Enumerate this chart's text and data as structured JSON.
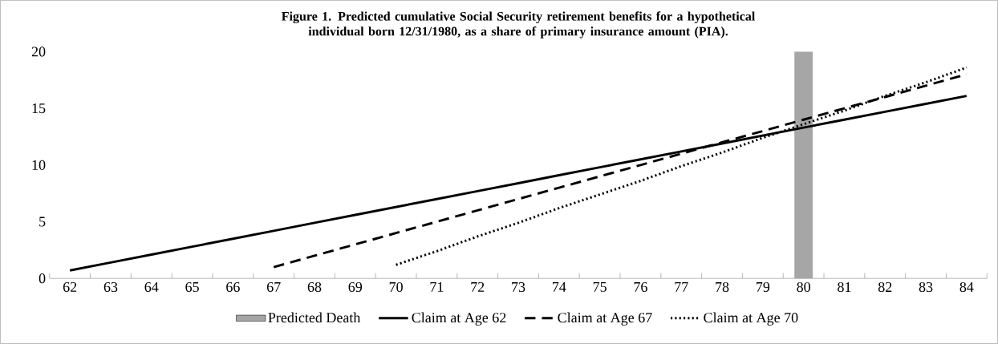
{
  "chart_data": {
    "type": "line",
    "title": "Figure 1. Predicted cumulative Social Security retirement benefits for a hypothetical individual born 12/31/1980, as a share of primary insurance amount (PIA).",
    "categories": [
      "62",
      "63",
      "64",
      "65",
      "66",
      "67",
      "68",
      "69",
      "70",
      "71",
      "72",
      "73",
      "74",
      "75",
      "76",
      "77",
      "78",
      "79",
      "80",
      "81",
      "82",
      "83",
      "84"
    ],
    "series": [
      {
        "name": "Predicted Death",
        "type": "bar",
        "color": "#a6a6a6",
        "values": [
          null,
          null,
          null,
          null,
          null,
          null,
          null,
          null,
          null,
          null,
          null,
          null,
          null,
          null,
          null,
          null,
          null,
          null,
          20,
          null,
          null,
          null,
          null
        ]
      },
      {
        "name": "Claim at Age 62",
        "color": "#000000",
        "line_style": "solid",
        "values": [
          0.7,
          1.4,
          2.1,
          2.8,
          3.5,
          4.2,
          4.9,
          5.6,
          6.3,
          7.0,
          7.7,
          8.4,
          9.1,
          9.8,
          10.5,
          11.2,
          11.9,
          12.6,
          13.3,
          14.0,
          14.7,
          15.4,
          16.1
        ]
      },
      {
        "name": "Claim at Age 67",
        "color": "#000000",
        "line_style": "dashed",
        "values": [
          null,
          null,
          null,
          null,
          null,
          1,
          2,
          3,
          4,
          5,
          6,
          7,
          8,
          9,
          10,
          11,
          12,
          13,
          14,
          15,
          16,
          17,
          18
        ]
      },
      {
        "name": "Claim at Age 70",
        "color": "#000000",
        "line_style": "dotted",
        "values": [
          null,
          null,
          null,
          null,
          null,
          null,
          null,
          null,
          1.2,
          2.4,
          3.7,
          4.9,
          6.2,
          7.4,
          8.6,
          9.9,
          11.1,
          12.4,
          13.6,
          14.8,
          16.1,
          17.3,
          18.6
        ]
      }
    ],
    "ylim": [
      0,
      20
    ],
    "yticks": [
      0,
      5,
      10,
      15,
      20
    ],
    "legend": "bottom",
    "marker": "none"
  }
}
